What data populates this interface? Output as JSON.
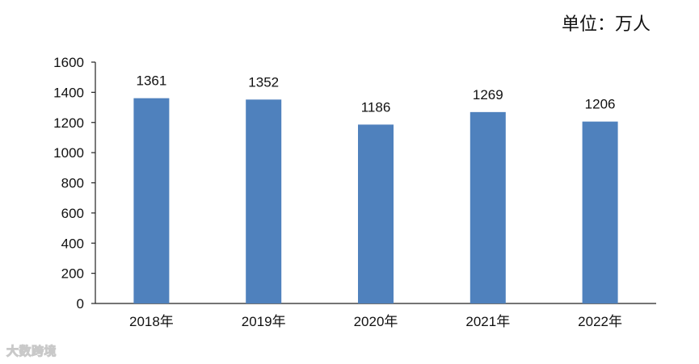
{
  "unit_label": "单位：万人",
  "watermark": "大数跨境",
  "colors": {
    "bar": "#4f81bd",
    "axis": "#222222",
    "text": "#111111"
  },
  "chart_data": {
    "type": "bar",
    "categories": [
      "2018年",
      "2019年",
      "2020年",
      "2021年",
      "2022年"
    ],
    "values": [
      1361,
      1352,
      1186,
      1269,
      1206
    ],
    "data_labels": [
      "1361",
      "1352",
      "1186",
      "1269",
      "1206"
    ],
    "ylim": [
      0,
      1600
    ],
    "yticks": [
      0,
      200,
      400,
      600,
      800,
      1000,
      1200,
      1400,
      1600
    ],
    "grid": false,
    "title": "",
    "xlabel": "",
    "ylabel": ""
  }
}
